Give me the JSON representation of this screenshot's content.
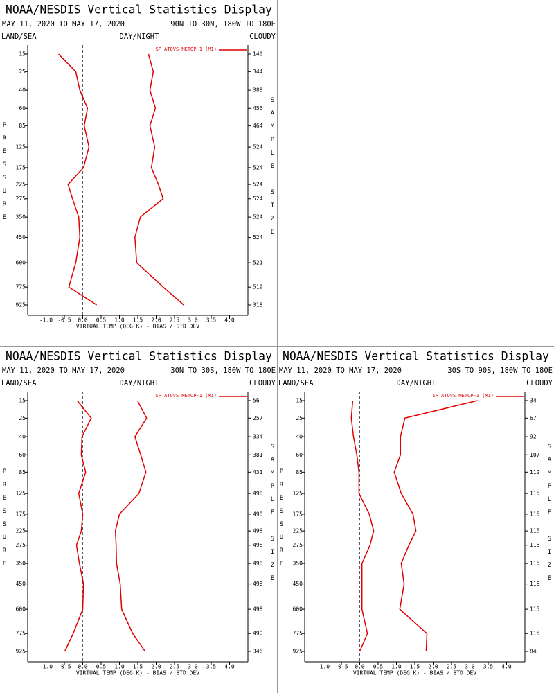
{
  "chart_data": [
    {
      "type": "line",
      "title": "NOAA/NESDIS Vertical Statistics Display",
      "date_range": "MAY 11, 2020 TO MAY 17, 2020",
      "region": "90N TO 30N, 180W TO 180E",
      "land_sea": "LAND/SEA",
      "day_night": "DAY/NIGHT",
      "cloudy": "CLOUDY",
      "ylabel": "PRESSURE",
      "y2label": "SAMPLE SIZE",
      "xlabel": "VIRTUAL TEMP (DEG K) - BIAS / STD DEV",
      "y": [
        15,
        25,
        40,
        60,
        85,
        125,
        175,
        225,
        275,
        350,
        450,
        600,
        775,
        925
      ],
      "sample_size": [
        140,
        344,
        388,
        456,
        464,
        524,
        524,
        524,
        524,
        524,
        524,
        521,
        519,
        318
      ],
      "xlim": [
        -1.5,
        4.5
      ],
      "xticks": [
        {
          "value": -1,
          "label": "-1.0"
        },
        -0.5,
        {
          "value": 0,
          "label": "0.0"
        },
        0.5,
        {
          "value": 1,
          "label": "1.0"
        },
        1.5,
        {
          "value": 2,
          "label": "2.0"
        },
        2.5,
        {
          "value": 3,
          "label": "3.0"
        },
        3.5,
        {
          "value": 4,
          "label": "4.0"
        }
      ],
      "series": [
        {
          "name": "SP ATOVS METOP-1 (M1)",
          "color": "#e00000",
          "values": [
            1.79,
            1.92,
            1.83,
            1.98,
            1.83,
            1.96,
            1.87,
            2.06,
            2.19,
            1.57,
            1.42,
            1.47,
            2.19,
            2.75
          ]
        },
        {
          "color": "#e00000",
          "values": [
            -0.66,
            -0.19,
            -0.08,
            0.13,
            0.04,
            0.17,
            0.02,
            -0.4,
            -0.28,
            -0.11,
            -0.08,
            -0.19,
            -0.38,
            0.38
          ]
        }
      ]
    },
    {
      "type": "line",
      "title": "NOAA/NESDIS Vertical Statistics Display",
      "date_range": "MAY 11, 2020 TO MAY 17, 2020",
      "region": "30N TO 30S, 180W TO 180E",
      "land_sea": "LAND/SEA",
      "day_night": "DAY/NIGHT",
      "cloudy": "CLOUDY",
      "ylabel": "PRESSURE",
      "y2label": "SAMPLE SIZE",
      "xlabel": "VIRTUAL TEMP (DEG K) - BIAS / STD DEV",
      "y": [
        15,
        25,
        40,
        60,
        85,
        125,
        175,
        225,
        275,
        350,
        450,
        600,
        775,
        925
      ],
      "sample_size": [
        56,
        257,
        334,
        381,
        431,
        498,
        498,
        498,
        498,
        498,
        498,
        498,
        490,
        346
      ],
      "xlim": [
        -1.5,
        4.5
      ],
      "xticks": [
        {
          "value": -1,
          "label": "-1.0"
        },
        -0.5,
        {
          "value": 0,
          "label": "0.0"
        },
        0.5,
        {
          "value": 1,
          "label": "1.0"
        },
        1.5,
        {
          "value": 2,
          "label": "2.0"
        },
        2.5,
        {
          "value": 3,
          "label": "3.0"
        },
        3.5,
        {
          "value": 4,
          "label": "4.0"
        }
      ],
      "series": [
        {
          "name": "SP ATOVS METOP-1 (M1)",
          "color": "#e00000",
          "values": [
            1.49,
            1.74,
            1.42,
            1.58,
            1.72,
            1.53,
            1.0,
            0.89,
            0.91,
            0.92,
            1.02,
            1.06,
            1.36,
            1.7
          ]
        },
        {
          "color": "#e00000",
          "values": [
            -0.15,
            0.23,
            -0.02,
            -0.04,
            0.08,
            -0.11,
            0,
            -0.04,
            -0.17,
            -0.09,
            0.02,
            0,
            -0.26,
            -0.49
          ]
        }
      ]
    },
    {
      "type": "line",
      "title": "NOAA/NESDIS Vertical Statistics Display",
      "date_range": "MAY 11, 2020 TO MAY 17, 2020",
      "region": "30S TO 90S, 180W TO 180E",
      "land_sea": "LAND/SEA",
      "day_night": "DAY/NIGHT",
      "cloudy": "CLOUDY",
      "ylabel": "PRESSURE",
      "y2label": "SAMPLE SIZE",
      "xlabel": "VIRTUAL TEMP (DEG K) - BIAS / STD DEV",
      "y": [
        15,
        25,
        40,
        60,
        85,
        125,
        175,
        225,
        275,
        350,
        450,
        600,
        775,
        925
      ],
      "sample_size": [
        34,
        67,
        92,
        107,
        112,
        115,
        115,
        115,
        115,
        115,
        115,
        115,
        115,
        84
      ],
      "xlim": [
        -1.5,
        4.5
      ],
      "xticks": [
        {
          "value": -1,
          "label": "-1.0"
        },
        -0.5,
        {
          "value": 0,
          "label": "0.0"
        },
        0.5,
        {
          "value": 1,
          "label": "1.0"
        },
        1.5,
        {
          "value": 2,
          "label": "2.0"
        },
        2.5,
        {
          "value": 3,
          "label": "3.0"
        },
        3.5,
        {
          "value": 4,
          "label": "4.0"
        }
      ],
      "series": [
        {
          "name": "SP ATOVS METOP-1 (M1)",
          "color": "#e00000",
          "values": [
            3.21,
            1.23,
            1.11,
            1.11,
            0.94,
            1.13,
            1.45,
            1.53,
            1.34,
            1.13,
            1.21,
            1.09,
            1.83,
            1.81
          ]
        },
        {
          "color": "#e00000",
          "values": [
            -0.19,
            -0.23,
            -0.17,
            -0.08,
            -0.02,
            -0.02,
            0.26,
            0.38,
            0.28,
            0.06,
            0.06,
            0.06,
            0.21,
            0
          ]
        }
      ]
    }
  ]
}
